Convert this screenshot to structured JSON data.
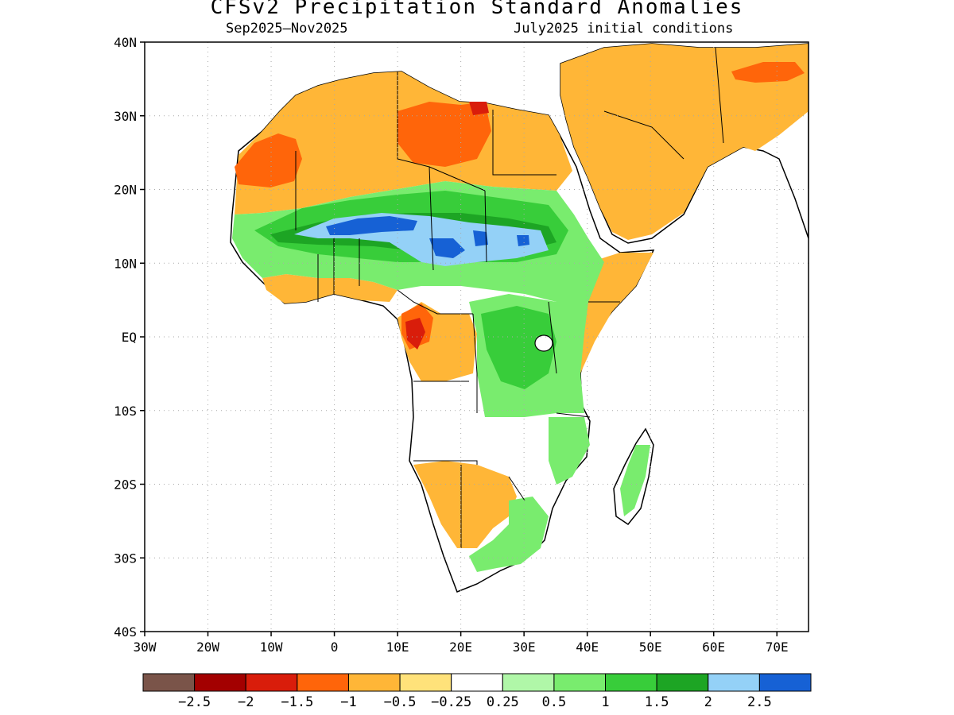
{
  "title": "CFSv2 Precipitation Standard Anomalies",
  "subtitle_left": "Sep2025–Nov2025",
  "subtitle_right": "July2025 initial conditions",
  "map": {
    "lon_range": [
      -30,
      75
    ],
    "lat_range": [
      -40,
      40
    ],
    "lat_labels": [
      {
        "lat": 40,
        "text": "40N"
      },
      {
        "lat": 30,
        "text": "30N"
      },
      {
        "lat": 20,
        "text": "20N"
      },
      {
        "lat": 10,
        "text": "10N"
      },
      {
        "lat": 0,
        "text": "EQ"
      },
      {
        "lat": -10,
        "text": "10S"
      },
      {
        "lat": -20,
        "text": "20S"
      },
      {
        "lat": -30,
        "text": "30S"
      },
      {
        "lat": -40,
        "text": "40S"
      }
    ],
    "lon_labels": [
      {
        "lon": -30,
        "text": "30W"
      },
      {
        "lon": -20,
        "text": "20W"
      },
      {
        "lon": -10,
        "text": "10W"
      },
      {
        "lon": 0,
        "text": "0"
      },
      {
        "lon": 10,
        "text": "10E"
      },
      {
        "lon": 20,
        "text": "20E"
      },
      {
        "lon": 30,
        "text": "30E"
      },
      {
        "lon": 40,
        "text": "40E"
      },
      {
        "lon": 50,
        "text": "50E"
      },
      {
        "lon": 60,
        "text": "60E"
      },
      {
        "lon": 70,
        "text": "70E"
      }
    ]
  },
  "colorbar": {
    "colors": [
      "#7a5449",
      "#a30000",
      "#d91d0b",
      "#ff650a",
      "#ffb637",
      "#ffe27a",
      "#ffffff",
      "#b0f7a8",
      "#79ec6e",
      "#38cd3a",
      "#1da524",
      "#94d1f7",
      "#1661d5"
    ],
    "labels": [
      "−2.5",
      "−2",
      "−1.5",
      "−1",
      "−0.5",
      "−0.25",
      "0.25",
      "0.5",
      "1",
      "1.5",
      "2",
      "2.5"
    ]
  }
}
